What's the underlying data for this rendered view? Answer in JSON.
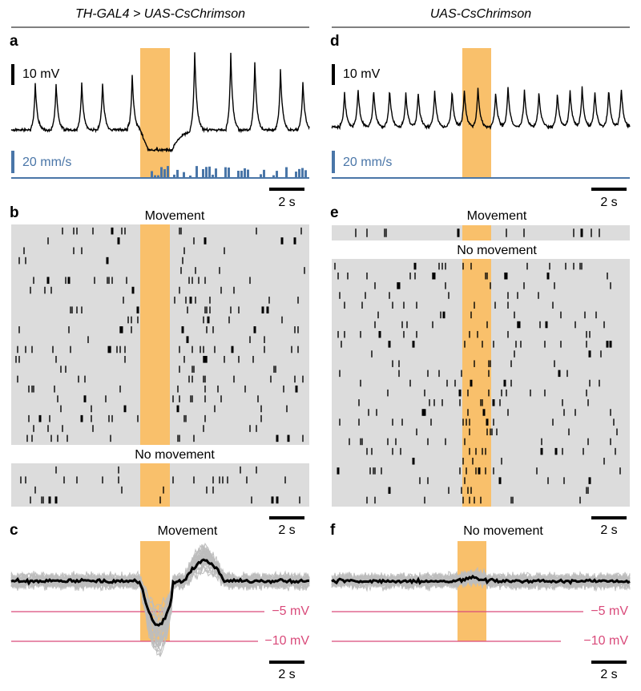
{
  "header": {
    "left": "TH-GAL4 > UAS-CsChrimson",
    "right": "UAS-CsChrimson"
  },
  "panels": {
    "a": {
      "label": "a",
      "voltage_scale": "10 mV",
      "speed_scale": "20 mm/s",
      "time_scale": "2 s"
    },
    "b": {
      "label": "b",
      "group_1": "Movement",
      "group_2": "No movement",
      "time_scale": "2 s"
    },
    "c": {
      "label": "c",
      "condition": "Movement",
      "ref_1": "−5 mV",
      "ref_2": "−10 mV",
      "time_scale": "2 s"
    },
    "d": {
      "label": "d",
      "voltage_scale": "10 mV",
      "speed_scale": "20 mm/s",
      "time_scale": "2 s"
    },
    "e": {
      "label": "e",
      "group_1": "Movement",
      "group_2": "No movement",
      "time_scale": "2 s"
    },
    "f": {
      "label": "f",
      "condition": "No movement",
      "ref_1": "−5 mV",
      "ref_2": "−10 mV",
      "time_scale": "2 s"
    }
  }
}
